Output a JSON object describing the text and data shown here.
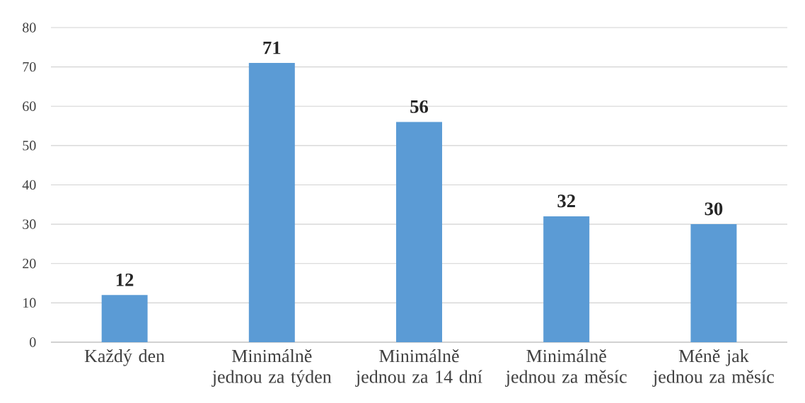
{
  "chart_data": {
    "type": "bar",
    "categories": [
      "Každý den",
      "Minimálně jednou za týden",
      "Minimálně jednou za 14 dní",
      "Minimálně jednou za měsíc",
      "Méně jak jednou za měsíc"
    ],
    "values": [
      12,
      71,
      56,
      32,
      30
    ],
    "color": "#5b9bd5",
    "ylim": [
      0,
      80
    ],
    "yticks": [
      0,
      10,
      20,
      30,
      40,
      50,
      60,
      70,
      80
    ],
    "grid": "y",
    "data_labels": true
  }
}
